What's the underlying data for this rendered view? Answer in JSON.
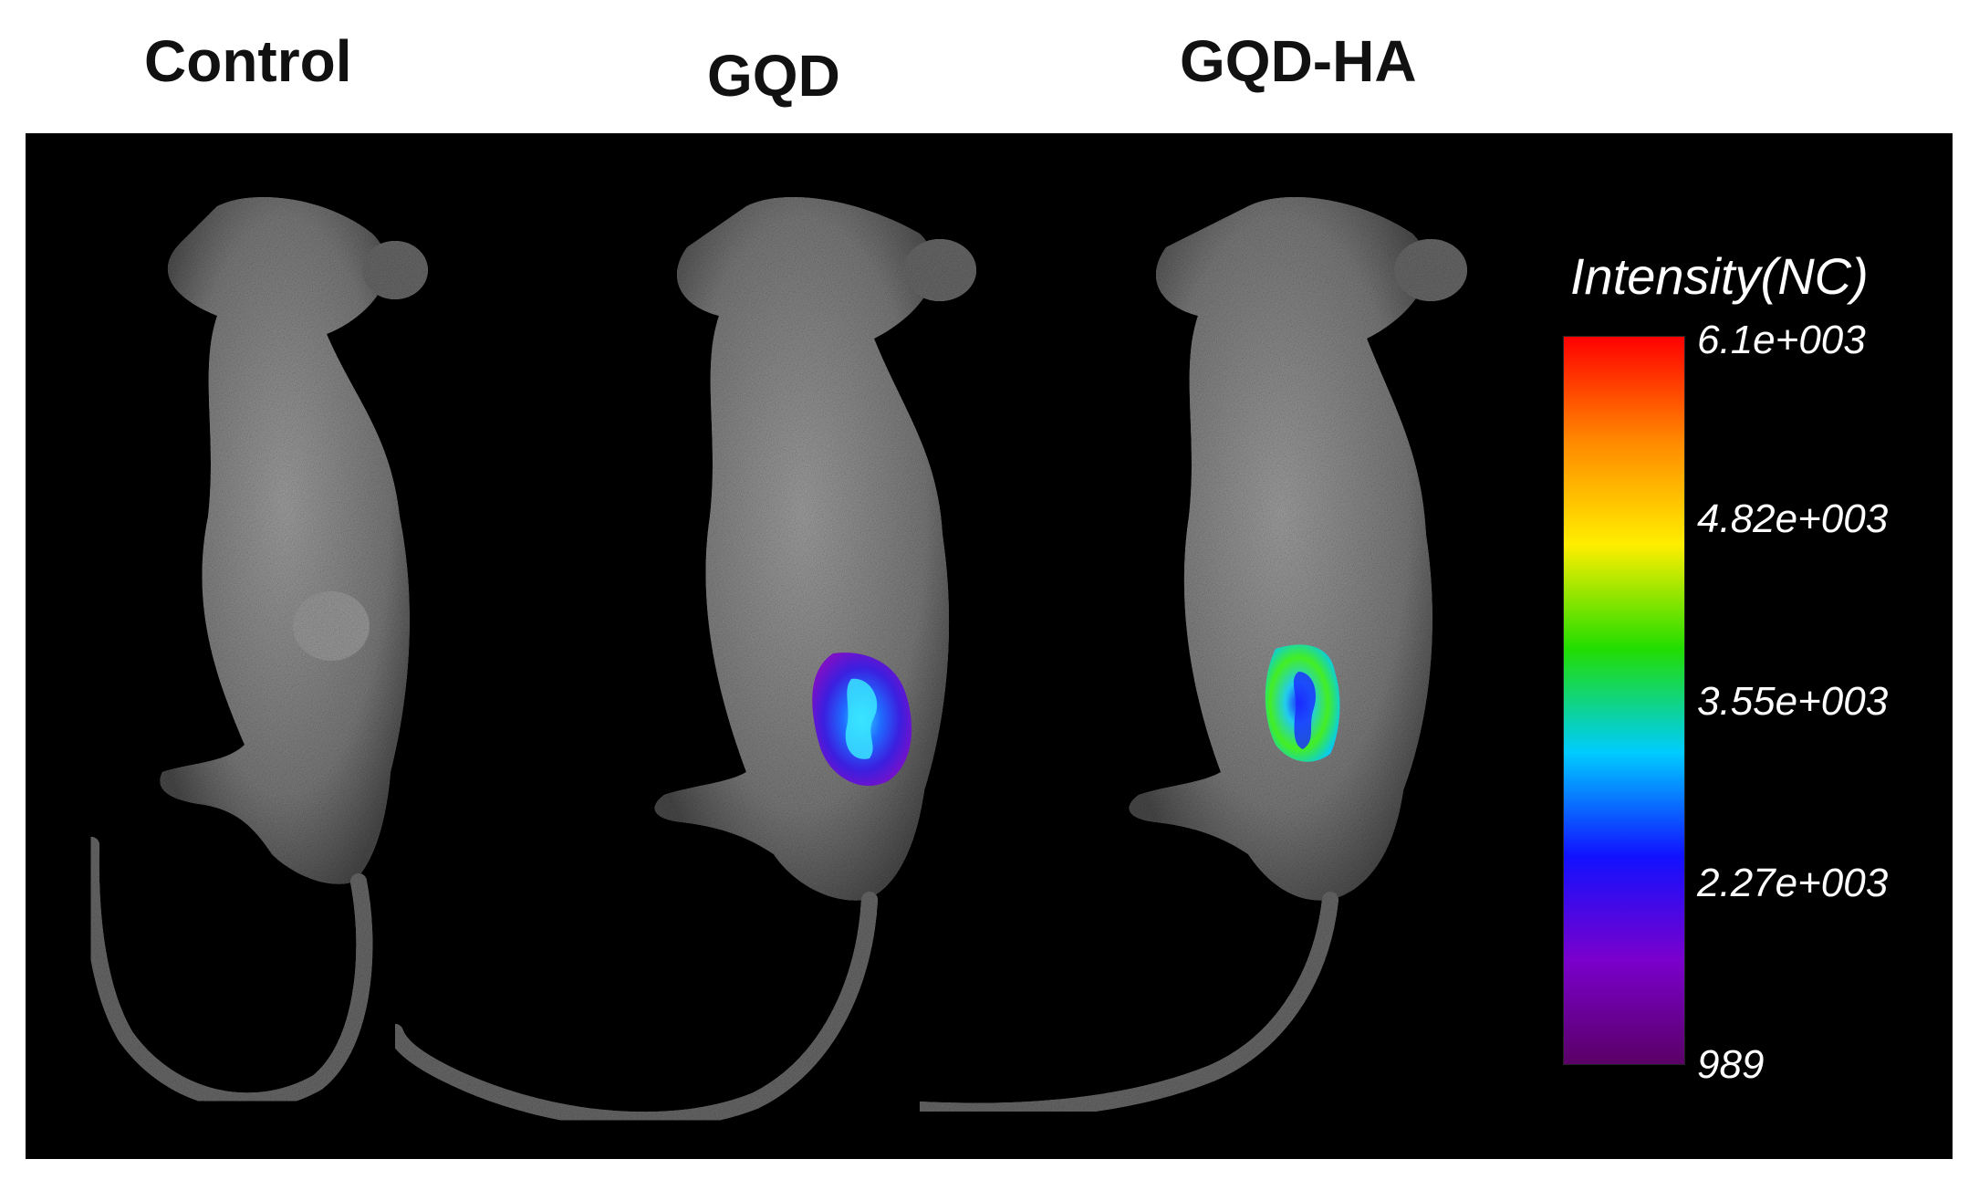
{
  "groups": [
    {
      "label": "Control"
    },
    {
      "label": "GQD"
    },
    {
      "label": "GQD-HA"
    }
  ],
  "legend": {
    "title": "Intensity(NC)",
    "ticks": [
      "6.1e+003",
      "4.82e+003",
      "3.55e+003",
      "2.27e+003",
      "989"
    ],
    "colors": [
      "#ff0000",
      "#ff8800",
      "#ffee00",
      "#22dd00",
      "#00ccff",
      "#1111ff",
      "#7a00cc",
      "#5a0066"
    ]
  },
  "colors": {
    "background": "#000000",
    "mouse_body": "#8a8a8a"
  }
}
